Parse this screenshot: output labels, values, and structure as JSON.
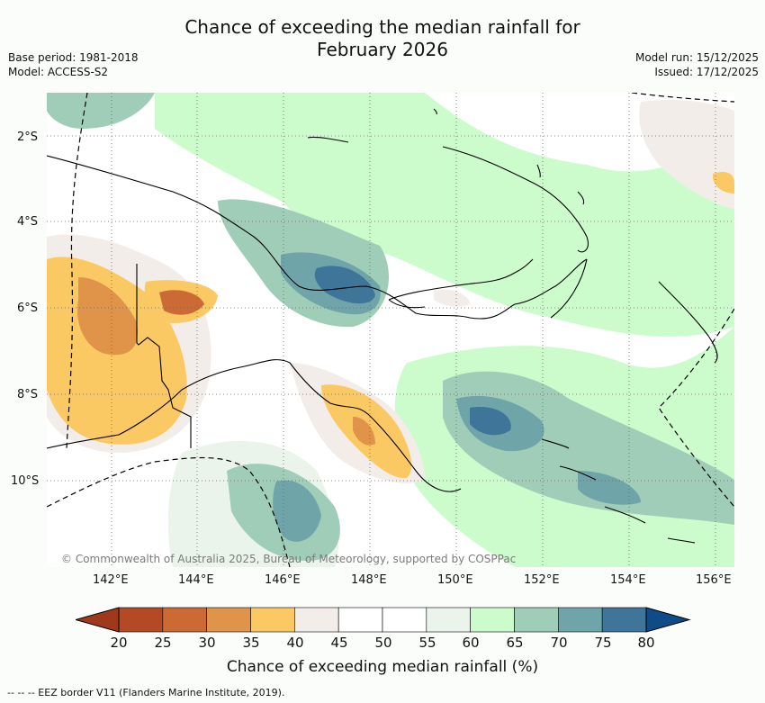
{
  "header": {
    "title_line1": "Chance of exceeding the median rainfall for",
    "title_line2": "February 2026",
    "base_period": "Base period: 1981-2018",
    "model": "Model: ACCESS-S2",
    "model_run": "Model run: 15/12/2025",
    "issued": "Issued: 17/12/2025"
  },
  "map": {
    "lon_labels": [
      "142°E",
      "144°E",
      "146°E",
      "148°E",
      "150°E",
      "152°E",
      "154°E",
      "156°E"
    ],
    "lat_labels": [
      "2°S",
      "4°S",
      "6°S",
      "8°S",
      "10°S"
    ],
    "copyright": "© Commonwealth of Australia 2025, Bureau of Meteorology, supported by COSPPac"
  },
  "colorbar": {
    "ticks": [
      "20",
      "25",
      "30",
      "35",
      "40",
      "45",
      "50",
      "55",
      "60",
      "65",
      "70",
      "75",
      "80"
    ],
    "colors": [
      "#b34a25",
      "#cc6a35",
      "#e0944a",
      "#fbc964",
      "#f2ede8",
      "#ffffff",
      "#ffffff",
      "#eaf4ea",
      "#ccfccc",
      "#9fcdb7",
      "#6fa5a8",
      "#3f7599"
    ],
    "low_color": "#9e3a1b",
    "high_color": "#0f4b86",
    "label": "Chance of exceeding median rainfall (%)"
  },
  "footnote": "--  --  -- EEZ border V11 (Flanders Marine Institute, 2019)."
}
